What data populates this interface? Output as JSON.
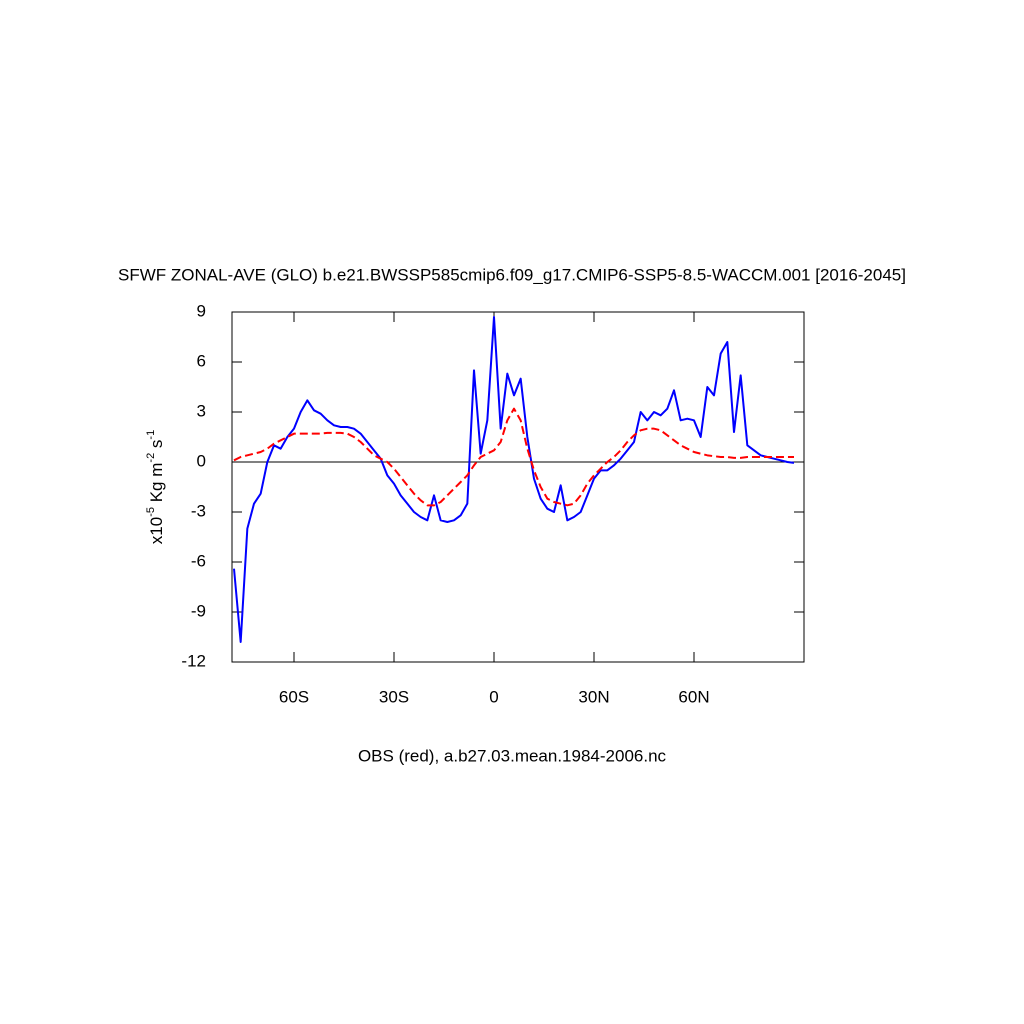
{
  "chart_data": {
    "type": "line",
    "title": "SFWF ZONAL-AVE (GLO) b.e21.BWSSP585cmip6.f09_g17.CMIP6-SSP5-8.5-WACCM.001 [2016-2045]",
    "xlabel": "OBS (red), a.b27.03.mean.1984-2006.nc",
    "ylabel": [
      "x10",
      "-5",
      " Kg m",
      "-2",
      " s",
      "-1"
    ],
    "xlim": [
      -78.6,
      93
    ],
    "xticks": [
      {
        "value": -60,
        "label": "60S"
      },
      {
        "value": -30,
        "label": "30S"
      },
      0,
      {
        "value": 30,
        "label": "30N"
      },
      {
        "value": 60,
        "label": "60N"
      }
    ],
    "ylim": [
      -12,
      9
    ],
    "yticks": [
      -12,
      -9,
      -6,
      -3,
      0,
      3,
      6,
      9
    ],
    "zero_line": true,
    "x": [
      -78,
      -76,
      -74,
      -72,
      -70,
      -68,
      -66,
      -64,
      -62,
      -60,
      -58,
      -56,
      -54,
      -52,
      -50,
      -48,
      -46,
      -44,
      -42,
      -40,
      -38,
      -36,
      -34,
      -32,
      -30,
      -28,
      -26,
      -24,
      -22,
      -20,
      -18,
      -16,
      -14,
      -12,
      -10,
      -8,
      -6,
      -4,
      -2,
      0,
      2,
      4,
      6,
      8,
      10,
      12,
      14,
      16,
      18,
      20,
      22,
      24,
      26,
      28,
      30,
      32,
      34,
      36,
      38,
      40,
      42,
      44,
      46,
      48,
      50,
      52,
      54,
      56,
      58,
      60,
      62,
      64,
      66,
      68,
      70,
      72,
      74,
      76,
      78,
      80,
      82,
      84,
      86,
      88,
      90
    ],
    "series": [
      {
        "color": "#0000ff",
        "dashed": false,
        "values": [
          -6.4,
          -10.8,
          -4.0,
          -2.5,
          -1.9,
          0.0,
          1.0,
          0.8,
          1.5,
          2.0,
          3.0,
          3.7,
          3.1,
          2.9,
          2.5,
          2.2,
          2.1,
          2.1,
          2.0,
          1.7,
          1.2,
          0.7,
          0.2,
          -0.8,
          -1.3,
          -2.0,
          -2.5,
          -3.0,
          -3.3,
          -3.5,
          -2.0,
          -3.5,
          -3.6,
          -3.5,
          -3.2,
          -2.5,
          5.5,
          0.5,
          2.5,
          8.7,
          2.0,
          5.3,
          4.0,
          5.0,
          1.5,
          -1.0,
          -2.2,
          -2.8,
          -3.0,
          -1.4,
          -3.5,
          -3.3,
          -3.0,
          -2.0,
          -1.0,
          -0.5,
          -0.5,
          -0.2,
          0.2,
          0.7,
          1.2,
          3.0,
          2.5,
          3.0,
          2.8,
          3.2,
          4.3,
          2.5,
          2.6,
          2.5,
          1.5,
          4.5,
          4.0,
          6.5,
          7.2,
          1.8,
          5.2,
          1.0,
          0.7,
          0.4,
          0.3,
          0.2,
          0.1,
          0.0,
          -0.05
        ]
      },
      {
        "color": "#ff0000",
        "dashed": true,
        "values": [
          0.1,
          0.3,
          0.4,
          0.5,
          0.6,
          0.8,
          1.1,
          1.3,
          1.5,
          1.7,
          1.7,
          1.7,
          1.7,
          1.7,
          1.75,
          1.75,
          1.75,
          1.7,
          1.5,
          1.2,
          0.8,
          0.4,
          0.2,
          0.0,
          -0.4,
          -0.9,
          -1.4,
          -1.9,
          -2.3,
          -2.6,
          -2.6,
          -2.4,
          -2.0,
          -1.6,
          -1.2,
          -0.8,
          -0.2,
          0.3,
          0.5,
          0.7,
          1.2,
          2.5,
          3.2,
          2.5,
          0.8,
          -0.5,
          -1.5,
          -2.2,
          -2.4,
          -2.5,
          -2.6,
          -2.5,
          -2.0,
          -1.3,
          -0.8,
          -0.4,
          0.0,
          0.3,
          0.7,
          1.2,
          1.6,
          1.9,
          2.0,
          2.0,
          1.9,
          1.6,
          1.3,
          1.0,
          0.8,
          0.6,
          0.5,
          0.4,
          0.35,
          0.3,
          0.3,
          0.25,
          0.25,
          0.3,
          0.3,
          0.3,
          0.3,
          0.3,
          0.3,
          0.3,
          0.3
        ]
      }
    ]
  }
}
